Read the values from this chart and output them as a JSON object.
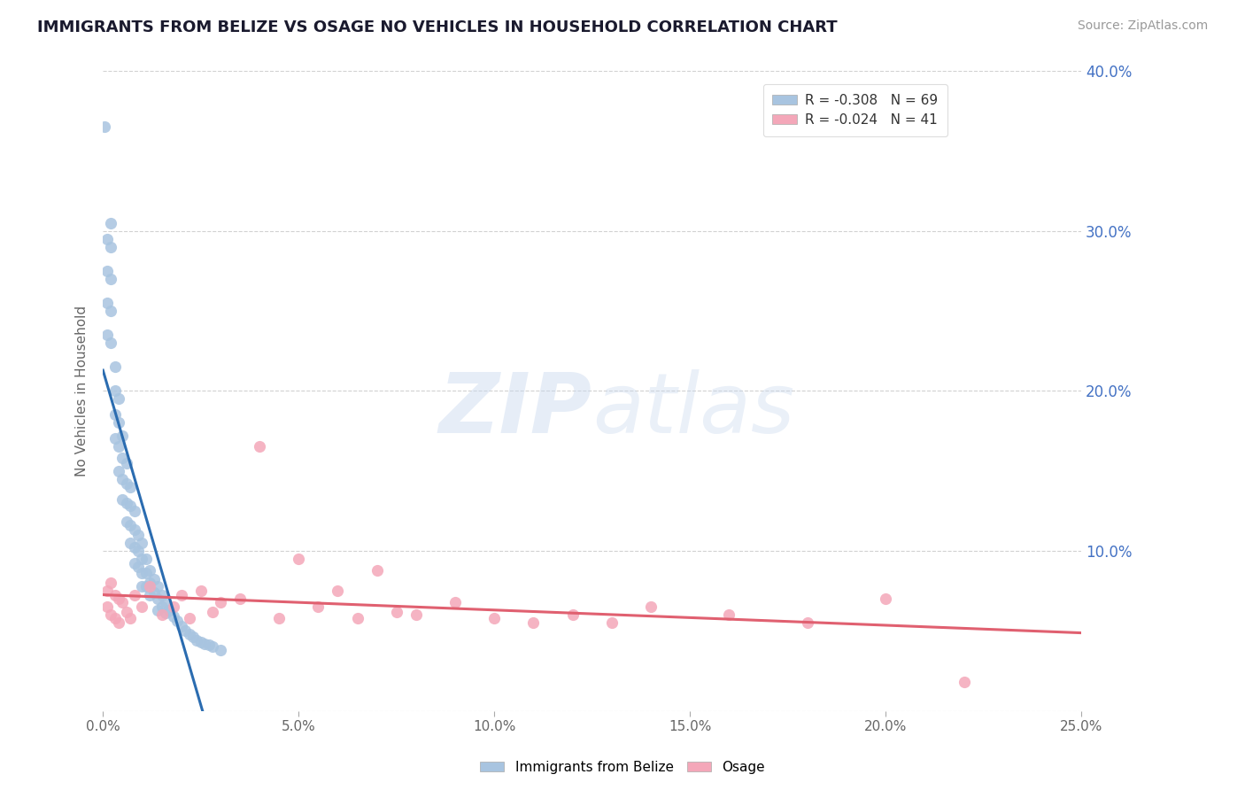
{
  "title": "IMMIGRANTS FROM BELIZE VS OSAGE NO VEHICLES IN HOUSEHOLD CORRELATION CHART",
  "source_text": "Source: ZipAtlas.com",
  "ylabel": "No Vehicles in Household",
  "xlim": [
    0.0,
    0.25
  ],
  "ylim": [
    0.0,
    0.4
  ],
  "xticks": [
    0.0,
    0.05,
    0.1,
    0.15,
    0.2,
    0.25
  ],
  "yticks": [
    0.0,
    0.1,
    0.2,
    0.3,
    0.4
  ],
  "xtick_labels": [
    "0.0%",
    "5.0%",
    "10.0%",
    "15.0%",
    "20.0%",
    "25.0%"
  ],
  "ytick_labels": [
    "",
    "10.0%",
    "20.0%",
    "30.0%",
    "40.0%"
  ],
  "legend1_label": "R = -0.308   N = 69",
  "legend2_label": "R = -0.024   N = 41",
  "series1_color": "#a8c4e0",
  "series2_color": "#f4a7b9",
  "line1_color": "#2b6cb0",
  "line2_color": "#e06070",
  "series1_name": "Immigrants from Belize",
  "series2_name": "Osage",
  "watermark": "ZIPatlas",
  "background_color": "#ffffff",
  "grid_color": "#cccccc",
  "title_color": "#1a1a2e",
  "belize_x": [
    0.0005,
    0.001,
    0.001,
    0.001,
    0.001,
    0.002,
    0.002,
    0.002,
    0.002,
    0.002,
    0.003,
    0.003,
    0.003,
    0.003,
    0.004,
    0.004,
    0.004,
    0.004,
    0.005,
    0.005,
    0.005,
    0.005,
    0.006,
    0.006,
    0.006,
    0.006,
    0.007,
    0.007,
    0.007,
    0.007,
    0.008,
    0.008,
    0.008,
    0.008,
    0.009,
    0.009,
    0.009,
    0.01,
    0.01,
    0.01,
    0.01,
    0.011,
    0.011,
    0.011,
    0.012,
    0.012,
    0.012,
    0.013,
    0.013,
    0.014,
    0.014,
    0.014,
    0.015,
    0.015,
    0.016,
    0.016,
    0.017,
    0.018,
    0.019,
    0.02,
    0.021,
    0.022,
    0.023,
    0.024,
    0.025,
    0.026,
    0.027,
    0.028,
    0.03
  ],
  "belize_y": [
    0.365,
    0.295,
    0.275,
    0.255,
    0.235,
    0.305,
    0.29,
    0.27,
    0.25,
    0.23,
    0.215,
    0.2,
    0.185,
    0.17,
    0.195,
    0.18,
    0.165,
    0.15,
    0.172,
    0.158,
    0.145,
    0.132,
    0.155,
    0.142,
    0.13,
    0.118,
    0.14,
    0.128,
    0.116,
    0.105,
    0.125,
    0.113,
    0.102,
    0.092,
    0.11,
    0.1,
    0.09,
    0.105,
    0.095,
    0.086,
    0.078,
    0.095,
    0.086,
    0.078,
    0.088,
    0.08,
    0.072,
    0.082,
    0.074,
    0.078,
    0.07,
    0.063,
    0.072,
    0.065,
    0.068,
    0.061,
    0.063,
    0.059,
    0.056,
    0.053,
    0.05,
    0.048,
    0.046,
    0.044,
    0.043,
    0.042,
    0.041,
    0.04,
    0.038
  ],
  "osage_x": [
    0.001,
    0.001,
    0.002,
    0.002,
    0.003,
    0.003,
    0.004,
    0.004,
    0.005,
    0.006,
    0.007,
    0.008,
    0.01,
    0.012,
    0.015,
    0.018,
    0.02,
    0.022,
    0.025,
    0.028,
    0.03,
    0.035,
    0.04,
    0.045,
    0.05,
    0.055,
    0.06,
    0.065,
    0.07,
    0.075,
    0.08,
    0.09,
    0.1,
    0.11,
    0.12,
    0.13,
    0.14,
    0.16,
    0.18,
    0.2,
    0.22
  ],
  "osage_y": [
    0.075,
    0.065,
    0.08,
    0.06,
    0.072,
    0.058,
    0.07,
    0.055,
    0.068,
    0.062,
    0.058,
    0.072,
    0.065,
    0.078,
    0.06,
    0.065,
    0.072,
    0.058,
    0.075,
    0.062,
    0.068,
    0.07,
    0.165,
    0.058,
    0.095,
    0.065,
    0.075,
    0.058,
    0.088,
    0.062,
    0.06,
    0.068,
    0.058,
    0.055,
    0.06,
    0.055,
    0.065,
    0.06,
    0.055,
    0.07,
    0.018
  ]
}
